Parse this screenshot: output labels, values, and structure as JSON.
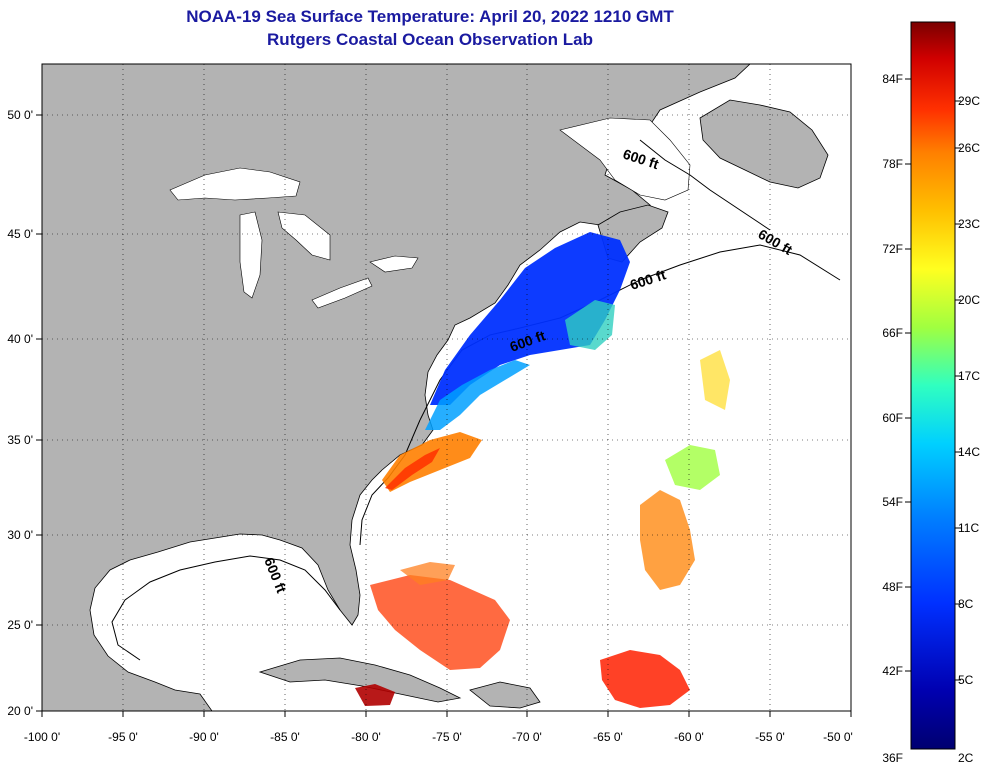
{
  "title": {
    "line1": "NOAA-19 Sea Surface Temperature:  April 20, 2022 1210 GMT",
    "line2": "Rutgers Coastal Ocean Observation Lab"
  },
  "axes": {
    "x_ticks": [
      "-100 0'",
      "-95 0'",
      "-90 0'",
      "-85 0'",
      "-80 0'",
      "-75 0'",
      "-70 0'",
      "-65 0'",
      "-60 0'",
      "-55 0'",
      "-50 0'"
    ],
    "x_values": [
      -100,
      -95,
      -90,
      -85,
      -80,
      -75,
      -70,
      -65,
      -60,
      -55,
      -50
    ],
    "y_ticks": [
      "50 0'",
      "45 0'",
      "40 0'",
      "35 0'",
      "30 0'",
      "25 0'",
      "20 0'"
    ],
    "y_values": [
      50,
      45,
      40,
      35,
      30,
      25,
      20
    ],
    "lon_range": [
      -100,
      -50
    ],
    "lat_range": [
      20,
      52.5
    ]
  },
  "contour_labels": [
    "600 ft",
    "600 ft",
    "600 ft",
    "600 ft",
    "600 ft"
  ],
  "colorbar": {
    "fahrenheit_labels": [
      "84F",
      "78F",
      "72F",
      "66F",
      "60F",
      "54F",
      "48F",
      "42F",
      "36F"
    ],
    "celsius_labels": [
      "29C",
      "26C",
      "23C",
      "20C",
      "17C",
      "14C",
      "11C",
      "8C",
      "5C",
      "2C"
    ],
    "colors": [
      "#7a0000",
      "#d00000",
      "#ff3000",
      "#ff8000",
      "#ffc000",
      "#ffff20",
      "#a0ff40",
      "#30ffc0",
      "#00d0ff",
      "#0080ff",
      "#0030ff",
      "#0000b0",
      "#000070"
    ]
  },
  "colors": {
    "land": "#b3b3b3",
    "ocean": "#ffffff",
    "title": "#1a1aa0"
  }
}
